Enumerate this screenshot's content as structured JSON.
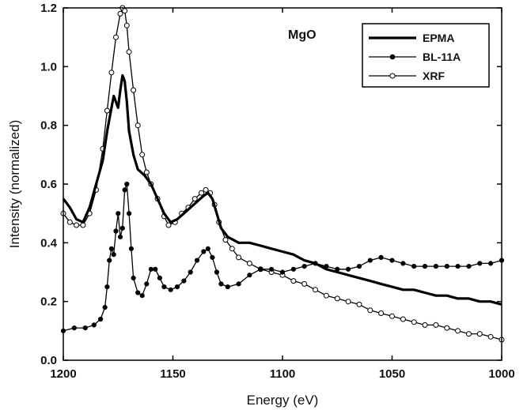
{
  "chart_data": {
    "type": "line",
    "xlabel": "Energy (eV)",
    "ylabel": "Intensity (normalized)",
    "xlim": [
      1200,
      1000
    ],
    "ylim": [
      0,
      1.2
    ],
    "x_reversed": true,
    "xticks": [
      1200,
      1150,
      1100,
      1050,
      1000
    ],
    "xtick_labels": [
      "1200",
      "1150",
      "1100",
      "1050",
      "1000"
    ],
    "yticks": [
      0,
      0.2,
      0.4,
      0.6,
      0.8,
      1.0,
      1.2
    ],
    "ytick_labels": [
      "0.0",
      "0.2",
      "0.4",
      "0.6",
      "0.8",
      "1.0",
      "1.2"
    ],
    "annotation": "MgO",
    "legend_position": "top-right",
    "series": [
      {
        "name": "EPMA",
        "style": "thick-line",
        "color": "#000000",
        "points": [
          [
            1200,
            0.55
          ],
          [
            1197,
            0.52
          ],
          [
            1194,
            0.48
          ],
          [
            1191,
            0.47
          ],
          [
            1188,
            0.52
          ],
          [
            1185,
            0.6
          ],
          [
            1182,
            0.68
          ],
          [
            1180,
            0.78
          ],
          [
            1178,
            0.86
          ],
          [
            1177,
            0.9
          ],
          [
            1176,
            0.88
          ],
          [
            1175,
            0.86
          ],
          [
            1174,
            0.92
          ],
          [
            1173,
            0.97
          ],
          [
            1172,
            0.95
          ],
          [
            1171,
            0.88
          ],
          [
            1170,
            0.78
          ],
          [
            1168,
            0.7
          ],
          [
            1166,
            0.65
          ],
          [
            1163,
            0.63
          ],
          [
            1160,
            0.6
          ],
          [
            1157,
            0.55
          ],
          [
            1154,
            0.5
          ],
          [
            1151,
            0.47
          ],
          [
            1148,
            0.48
          ],
          [
            1145,
            0.5
          ],
          [
            1142,
            0.52
          ],
          [
            1139,
            0.54
          ],
          [
            1136,
            0.56
          ],
          [
            1134,
            0.57
          ],
          [
            1132,
            0.55
          ],
          [
            1130,
            0.5
          ],
          [
            1128,
            0.45
          ],
          [
            1125,
            0.42
          ],
          [
            1120,
            0.4
          ],
          [
            1115,
            0.4
          ],
          [
            1110,
            0.39
          ],
          [
            1105,
            0.38
          ],
          [
            1100,
            0.37
          ],
          [
            1095,
            0.36
          ],
          [
            1090,
            0.34
          ],
          [
            1085,
            0.33
          ],
          [
            1080,
            0.31
          ],
          [
            1075,
            0.3
          ],
          [
            1070,
            0.29
          ],
          [
            1065,
            0.28
          ],
          [
            1060,
            0.27
          ],
          [
            1055,
            0.26
          ],
          [
            1050,
            0.25
          ],
          [
            1045,
            0.24
          ],
          [
            1040,
            0.24
          ],
          [
            1035,
            0.23
          ],
          [
            1030,
            0.22
          ],
          [
            1025,
            0.22
          ],
          [
            1020,
            0.21
          ],
          [
            1015,
            0.21
          ],
          [
            1010,
            0.2
          ],
          [
            1005,
            0.2
          ],
          [
            1000,
            0.19
          ]
        ]
      },
      {
        "name": "BL-11A",
        "style": "line-filled-marker",
        "color": "#000000",
        "points": [
          [
            1200,
            0.1
          ],
          [
            1195,
            0.11
          ],
          [
            1190,
            0.11
          ],
          [
            1186,
            0.12
          ],
          [
            1183,
            0.14
          ],
          [
            1181,
            0.18
          ],
          [
            1180,
            0.25
          ],
          [
            1179,
            0.34
          ],
          [
            1178,
            0.38
          ],
          [
            1177,
            0.36
          ],
          [
            1176,
            0.44
          ],
          [
            1175,
            0.5
          ],
          [
            1174,
            0.42
          ],
          [
            1173,
            0.45
          ],
          [
            1172,
            0.58
          ],
          [
            1171,
            0.6
          ],
          [
            1170,
            0.5
          ],
          [
            1169,
            0.38
          ],
          [
            1168,
            0.28
          ],
          [
            1166,
            0.23
          ],
          [
            1164,
            0.22
          ],
          [
            1162,
            0.26
          ],
          [
            1160,
            0.31
          ],
          [
            1158,
            0.31
          ],
          [
            1156,
            0.28
          ],
          [
            1154,
            0.25
          ],
          [
            1151,
            0.24
          ],
          [
            1148,
            0.25
          ],
          [
            1145,
            0.27
          ],
          [
            1142,
            0.3
          ],
          [
            1139,
            0.34
          ],
          [
            1136,
            0.37
          ],
          [
            1134,
            0.38
          ],
          [
            1132,
            0.35
          ],
          [
            1130,
            0.3
          ],
          [
            1128,
            0.26
          ],
          [
            1125,
            0.25
          ],
          [
            1120,
            0.26
          ],
          [
            1115,
            0.29
          ],
          [
            1110,
            0.31
          ],
          [
            1105,
            0.31
          ],
          [
            1100,
            0.3
          ],
          [
            1095,
            0.31
          ],
          [
            1090,
            0.32
          ],
          [
            1085,
            0.33
          ],
          [
            1080,
            0.32
          ],
          [
            1075,
            0.31
          ],
          [
            1070,
            0.31
          ],
          [
            1065,
            0.32
          ],
          [
            1060,
            0.34
          ],
          [
            1055,
            0.35
          ],
          [
            1050,
            0.34
          ],
          [
            1045,
            0.33
          ],
          [
            1040,
            0.32
          ],
          [
            1035,
            0.32
          ],
          [
            1030,
            0.32
          ],
          [
            1025,
            0.32
          ],
          [
            1020,
            0.32
          ],
          [
            1015,
            0.32
          ],
          [
            1010,
            0.33
          ],
          [
            1005,
            0.33
          ],
          [
            1000,
            0.34
          ]
        ]
      },
      {
        "name": "XRF",
        "style": "line-open-marker",
        "color": "#000000",
        "points": [
          [
            1200,
            0.5
          ],
          [
            1197,
            0.47
          ],
          [
            1194,
            0.46
          ],
          [
            1191,
            0.46
          ],
          [
            1188,
            0.5
          ],
          [
            1185,
            0.58
          ],
          [
            1182,
            0.72
          ],
          [
            1180,
            0.85
          ],
          [
            1178,
            0.98
          ],
          [
            1176,
            1.1
          ],
          [
            1174,
            1.18
          ],
          [
            1173,
            1.2
          ],
          [
            1172,
            1.19
          ],
          [
            1171,
            1.14
          ],
          [
            1170,
            1.05
          ],
          [
            1168,
            0.92
          ],
          [
            1166,
            0.8
          ],
          [
            1164,
            0.7
          ],
          [
            1162,
            0.64
          ],
          [
            1160,
            0.6
          ],
          [
            1157,
            0.55
          ],
          [
            1154,
            0.49
          ],
          [
            1152,
            0.46
          ],
          [
            1149,
            0.47
          ],
          [
            1146,
            0.5
          ],
          [
            1143,
            0.52
          ],
          [
            1140,
            0.55
          ],
          [
            1137,
            0.57
          ],
          [
            1135,
            0.58
          ],
          [
            1133,
            0.57
          ],
          [
            1131,
            0.53
          ],
          [
            1129,
            0.47
          ],
          [
            1126,
            0.41
          ],
          [
            1123,
            0.38
          ],
          [
            1120,
            0.35
          ],
          [
            1115,
            0.33
          ],
          [
            1110,
            0.31
          ],
          [
            1105,
            0.3
          ],
          [
            1100,
            0.29
          ],
          [
            1095,
            0.27
          ],
          [
            1090,
            0.26
          ],
          [
            1085,
            0.24
          ],
          [
            1080,
            0.22
          ],
          [
            1075,
            0.21
          ],
          [
            1070,
            0.2
          ],
          [
            1065,
            0.19
          ],
          [
            1060,
            0.17
          ],
          [
            1055,
            0.16
          ],
          [
            1050,
            0.15
          ],
          [
            1045,
            0.14
          ],
          [
            1040,
            0.13
          ],
          [
            1035,
            0.12
          ],
          [
            1030,
            0.12
          ],
          [
            1025,
            0.11
          ],
          [
            1020,
            0.1
          ],
          [
            1015,
            0.09
          ],
          [
            1010,
            0.09
          ],
          [
            1005,
            0.08
          ],
          [
            1000,
            0.07
          ]
        ]
      }
    ]
  }
}
